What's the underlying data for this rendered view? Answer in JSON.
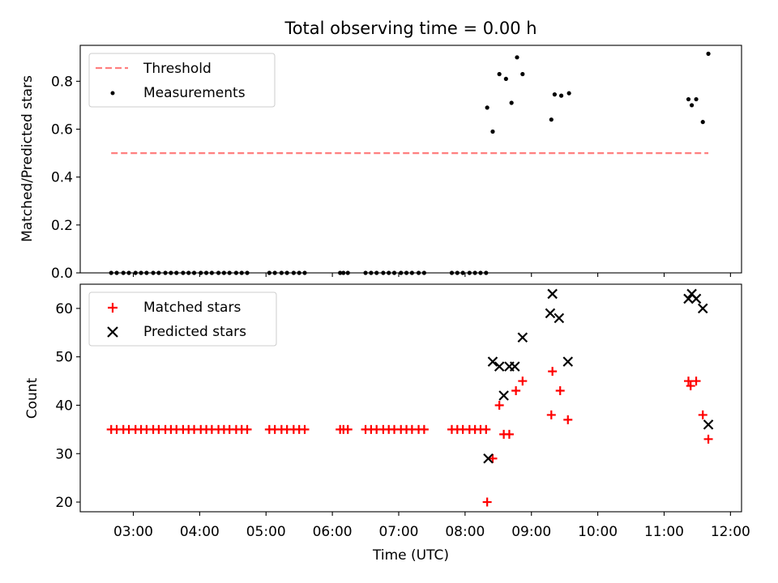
{
  "figure": {
    "title": "Total observing time = 0.00 h",
    "xlabel": "Time (UTC)"
  },
  "chart_data": [
    {
      "type": "scatter",
      "panel": "top",
      "ylabel": "Matched/Predicted stars",
      "xlim": [
        "02:12",
        "12:10"
      ],
      "ylim": [
        0,
        0.95
      ],
      "xticks": [
        "03:00",
        "04:00",
        "05:00",
        "06:00",
        "07:00",
        "08:00",
        "09:00",
        "10:00",
        "11:00",
        "12:00"
      ],
      "yticks": [
        "0.0",
        "0.2",
        "0.4",
        "0.6",
        "0.8"
      ],
      "grid": false,
      "legend": "top-left",
      "series": [
        {
          "name": "Threshold",
          "kind": "dashed-line",
          "color": "#ff7f7f",
          "x": [
            "02:40",
            "11:40"
          ],
          "y": [
            0.5,
            0.5
          ]
        },
        {
          "name": "Measurements",
          "kind": "dot",
          "color": "#000000",
          "points": [
            [
              "02:40",
              0
            ],
            [
              "02:45",
              0
            ],
            [
              "02:51",
              0
            ],
            [
              "02:56",
              0
            ],
            [
              "03:02",
              0
            ],
            [
              "03:07",
              0
            ],
            [
              "03:12",
              0
            ],
            [
              "03:18",
              0
            ],
            [
              "03:23",
              0
            ],
            [
              "03:29",
              0
            ],
            [
              "03:34",
              0
            ],
            [
              "03:39",
              0
            ],
            [
              "03:45",
              0
            ],
            [
              "03:50",
              0
            ],
            [
              "03:55",
              0
            ],
            [
              "04:01",
              0
            ],
            [
              "04:06",
              0
            ],
            [
              "04:11",
              0
            ],
            [
              "04:17",
              0
            ],
            [
              "04:22",
              0
            ],
            [
              "04:27",
              0
            ],
            [
              "04:33",
              0
            ],
            [
              "04:38",
              0
            ],
            [
              "04:43",
              0
            ],
            [
              "05:03",
              0
            ],
            [
              "05:08",
              0
            ],
            [
              "05:14",
              0
            ],
            [
              "05:19",
              0
            ],
            [
              "05:25",
              0
            ],
            [
              "05:30",
              0
            ],
            [
              "05:35",
              0
            ],
            [
              "06:07",
              0
            ],
            [
              "06:10",
              0
            ],
            [
              "06:14",
              0
            ],
            [
              "06:30",
              0
            ],
            [
              "06:35",
              0
            ],
            [
              "06:40",
              0
            ],
            [
              "06:46",
              0
            ],
            [
              "06:51",
              0
            ],
            [
              "06:56",
              0
            ],
            [
              "07:02",
              0
            ],
            [
              "07:07",
              0
            ],
            [
              "07:12",
              0
            ],
            [
              "07:18",
              0
            ],
            [
              "07:23",
              0
            ],
            [
              "07:48",
              0
            ],
            [
              "07:53",
              0
            ],
            [
              "07:58",
              0
            ],
            [
              "08:04",
              0
            ],
            [
              "08:09",
              0
            ],
            [
              "08:14",
              0
            ],
            [
              "08:19",
              0
            ],
            [
              "08:20",
              0.69
            ],
            [
              "08:25",
              0.59
            ],
            [
              "08:31",
              0.83
            ],
            [
              "08:37",
              0.81
            ],
            [
              "08:42",
              0.71
            ],
            [
              "08:47",
              0.9
            ],
            [
              "08:52",
              0.83
            ],
            [
              "09:18",
              0.64
            ],
            [
              "09:21",
              0.745
            ],
            [
              "09:27",
              0.74
            ],
            [
              "09:34",
              0.75
            ],
            [
              "11:22",
              0.725
            ],
            [
              "11:25",
              0.7
            ],
            [
              "11:29",
              0.725
            ],
            [
              "11:35",
              0.63
            ],
            [
              "11:40",
              0.915
            ]
          ]
        }
      ]
    },
    {
      "type": "scatter",
      "panel": "bottom",
      "ylabel": "Count",
      "xlim": [
        "02:12",
        "12:10"
      ],
      "ylim": [
        18,
        65
      ],
      "xticks": [
        "03:00",
        "04:00",
        "05:00",
        "06:00",
        "07:00",
        "08:00",
        "09:00",
        "10:00",
        "11:00",
        "12:00"
      ],
      "yticks": [
        "20",
        "30",
        "40",
        "50",
        "60"
      ],
      "grid": false,
      "legend": "top-left",
      "series": [
        {
          "name": "Matched stars",
          "kind": "plus",
          "color": "#ff0000",
          "points": [
            [
              "02:40",
              35
            ],
            [
              "02:45",
              35
            ],
            [
              "02:51",
              35
            ],
            [
              "02:56",
              35
            ],
            [
              "03:02",
              35
            ],
            [
              "03:07",
              35
            ],
            [
              "03:12",
              35
            ],
            [
              "03:18",
              35
            ],
            [
              "03:23",
              35
            ],
            [
              "03:29",
              35
            ],
            [
              "03:34",
              35
            ],
            [
              "03:39",
              35
            ],
            [
              "03:45",
              35
            ],
            [
              "03:50",
              35
            ],
            [
              "03:55",
              35
            ],
            [
              "04:01",
              35
            ],
            [
              "04:06",
              35
            ],
            [
              "04:11",
              35
            ],
            [
              "04:17",
              35
            ],
            [
              "04:22",
              35
            ],
            [
              "04:27",
              35
            ],
            [
              "04:33",
              35
            ],
            [
              "04:38",
              35
            ],
            [
              "04:43",
              35
            ],
            [
              "05:03",
              35
            ],
            [
              "05:08",
              35
            ],
            [
              "05:14",
              35
            ],
            [
              "05:19",
              35
            ],
            [
              "05:25",
              35
            ],
            [
              "05:30",
              35
            ],
            [
              "05:35",
              35
            ],
            [
              "06:07",
              35
            ],
            [
              "06:10",
              35
            ],
            [
              "06:14",
              35
            ],
            [
              "06:30",
              35
            ],
            [
              "06:35",
              35
            ],
            [
              "06:40",
              35
            ],
            [
              "06:46",
              35
            ],
            [
              "06:51",
              35
            ],
            [
              "06:56",
              35
            ],
            [
              "07:02",
              35
            ],
            [
              "07:07",
              35
            ],
            [
              "07:12",
              35
            ],
            [
              "07:18",
              35
            ],
            [
              "07:23",
              35
            ],
            [
              "07:48",
              35
            ],
            [
              "07:53",
              35
            ],
            [
              "07:58",
              35
            ],
            [
              "08:04",
              35
            ],
            [
              "08:09",
              35
            ],
            [
              "08:14",
              35
            ],
            [
              "08:19",
              35
            ],
            [
              "08:20",
              20
            ],
            [
              "08:25",
              29
            ],
            [
              "08:31",
              40
            ],
            [
              "08:35",
              34
            ],
            [
              "08:40",
              34
            ],
            [
              "08:46",
              43
            ],
            [
              "08:52",
              45
            ],
            [
              "09:18",
              38
            ],
            [
              "09:19",
              47
            ],
            [
              "09:26",
              43
            ],
            [
              "09:33",
              37
            ],
            [
              "11:22",
              45
            ],
            [
              "11:24",
              44
            ],
            [
              "11:29",
              45
            ],
            [
              "11:35",
              38
            ],
            [
              "11:40",
              33
            ]
          ]
        },
        {
          "name": "Predicted stars",
          "kind": "x",
          "color": "#000000",
          "points": [
            [
              "08:21",
              29
            ],
            [
              "08:25",
              49
            ],
            [
              "08:31",
              48
            ],
            [
              "08:35",
              42
            ],
            [
              "08:40",
              48
            ],
            [
              "08:45",
              48
            ],
            [
              "08:52",
              54
            ],
            [
              "09:17",
              59
            ],
            [
              "09:19",
              63
            ],
            [
              "09:25",
              58
            ],
            [
              "09:33",
              49
            ],
            [
              "11:22",
              62
            ],
            [
              "11:25",
              63
            ],
            [
              "11:29",
              62
            ],
            [
              "11:35",
              60
            ],
            [
              "11:40",
              36
            ]
          ]
        }
      ]
    }
  ]
}
